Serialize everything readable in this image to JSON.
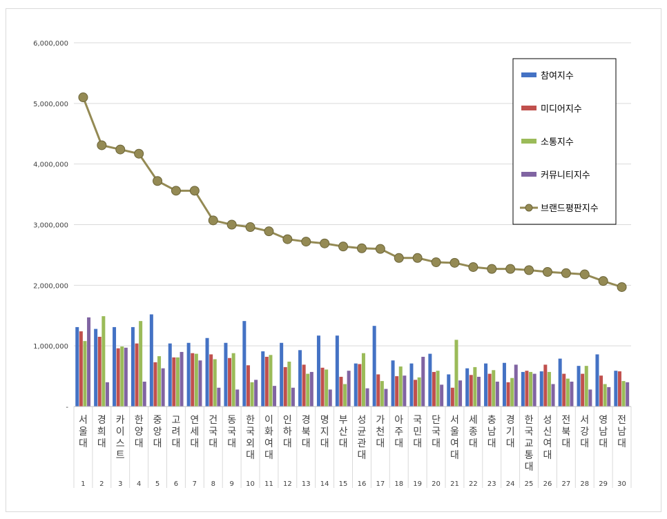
{
  "chart_data": {
    "type": "bar+line",
    "title": "",
    "xlabel": "",
    "ylabel": "",
    "ylim": [
      0,
      6000000
    ],
    "y_ticks": [
      "-",
      "1,000,000",
      "2,000,000",
      "3,000,000",
      "4,000,000",
      "5,000,000",
      "6,000,000"
    ],
    "grid": true,
    "legend_position": "top-right",
    "categories": [
      "서울대",
      "경희대",
      "카이스트",
      "한양대",
      "중앙대",
      "고려대",
      "연세대",
      "건국대",
      "동국대",
      "한국외대",
      "이화여대",
      "인하대",
      "경북대",
      "명지대",
      "부산대",
      "성균관대",
      "가천대",
      "아주대",
      "국민대",
      "단국대",
      "서울여대",
      "세종대",
      "충남대",
      "경기대",
      "한국교통대",
      "성신여대",
      "전북대",
      "서강대",
      "영남대",
      "전남대"
    ],
    "ranks": [
      "1",
      "2",
      "3",
      "4",
      "5",
      "6",
      "7",
      "8",
      "9",
      "10",
      "11",
      "12",
      "13",
      "14",
      "15",
      "16",
      "17",
      "18",
      "19",
      "20",
      "21",
      "22",
      "23",
      "24",
      "25",
      "26",
      "27",
      "28",
      "29",
      "30"
    ],
    "series": [
      {
        "name": "참여지수",
        "kind": "bar",
        "color": "#4472c4",
        "values": [
          1310000,
          1280000,
          1310000,
          1310000,
          1520000,
          1040000,
          1050000,
          1130000,
          1050000,
          1410000,
          910000,
          1050000,
          930000,
          1170000,
          1170000,
          710000,
          1330000,
          760000,
          710000,
          870000,
          530000,
          630000,
          710000,
          720000,
          570000,
          580000,
          790000,
          670000,
          860000,
          590000
        ]
      },
      {
        "name": "미디어지수",
        "kind": "bar",
        "color": "#c0504d",
        "values": [
          1240000,
          1150000,
          960000,
          1040000,
          730000,
          810000,
          880000,
          860000,
          800000,
          680000,
          820000,
          650000,
          690000,
          640000,
          490000,
          700000,
          530000,
          500000,
          440000,
          570000,
          310000,
          520000,
          540000,
          400000,
          590000,
          690000,
          540000,
          540000,
          510000,
          580000
        ]
      },
      {
        "name": "소통지수",
        "kind": "bar",
        "color": "#9bbb59",
        "values": [
          1080000,
          1490000,
          990000,
          1410000,
          830000,
          810000,
          870000,
          780000,
          880000,
          400000,
          850000,
          740000,
          540000,
          610000,
          370000,
          880000,
          420000,
          660000,
          480000,
          590000,
          1100000,
          650000,
          600000,
          470000,
          570000,
          570000,
          460000,
          670000,
          370000,
          420000
        ]
      },
      {
        "name": "커뮤니티지수",
        "kind": "bar",
        "color": "#8064a2",
        "values": [
          1470000,
          400000,
          970000,
          410000,
          630000,
          900000,
          760000,
          310000,
          280000,
          440000,
          340000,
          310000,
          570000,
          280000,
          590000,
          300000,
          290000,
          510000,
          820000,
          360000,
          430000,
          490000,
          410000,
          690000,
          540000,
          370000,
          410000,
          280000,
          320000,
          400000
        ]
      },
      {
        "name": "브랜드평판지수",
        "kind": "line",
        "color": "#948a54",
        "values": [
          5100000,
          4310000,
          4240000,
          4170000,
          3720000,
          3560000,
          3560000,
          3070000,
          3000000,
          2960000,
          2890000,
          2760000,
          2720000,
          2690000,
          2640000,
          2610000,
          2600000,
          2450000,
          2450000,
          2380000,
          2370000,
          2300000,
          2270000,
          2270000,
          2250000,
          2220000,
          2200000,
          2180000,
          2070000,
          1970000
        ]
      }
    ]
  }
}
